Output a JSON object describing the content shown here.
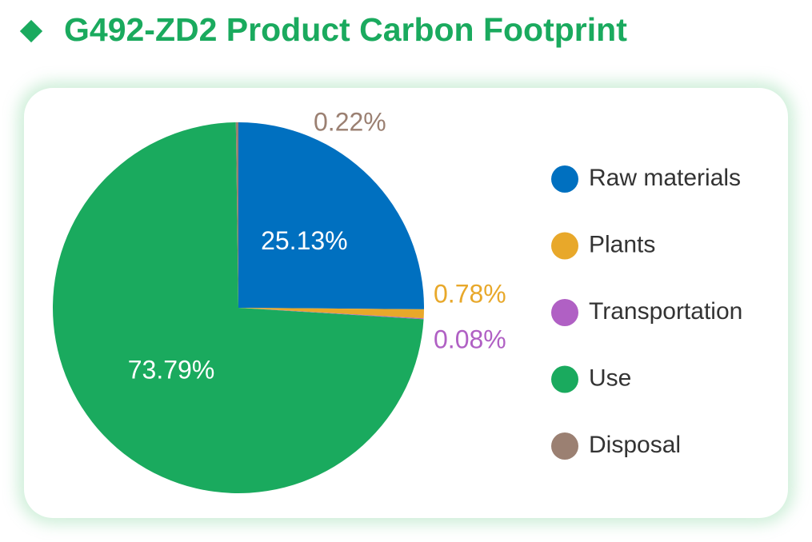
{
  "chart_data": {
    "type": "pie",
    "title": "G492-ZD2 Product Carbon Footprint",
    "categories": [
      "Raw materials",
      "Plants",
      "Transportation",
      "Use",
      "Disposal"
    ],
    "values": [
      25.13,
      0.78,
      0.08,
      73.79,
      0.22
    ],
    "value_labels": [
      "25.13%",
      "0.78%",
      "0.08%",
      "73.79%",
      "0.22%"
    ],
    "colors": [
      "#0070c0",
      "#e8a82a",
      "#b060c4",
      "#1aaa5e",
      "#9b8072"
    ],
    "legend": "right"
  }
}
